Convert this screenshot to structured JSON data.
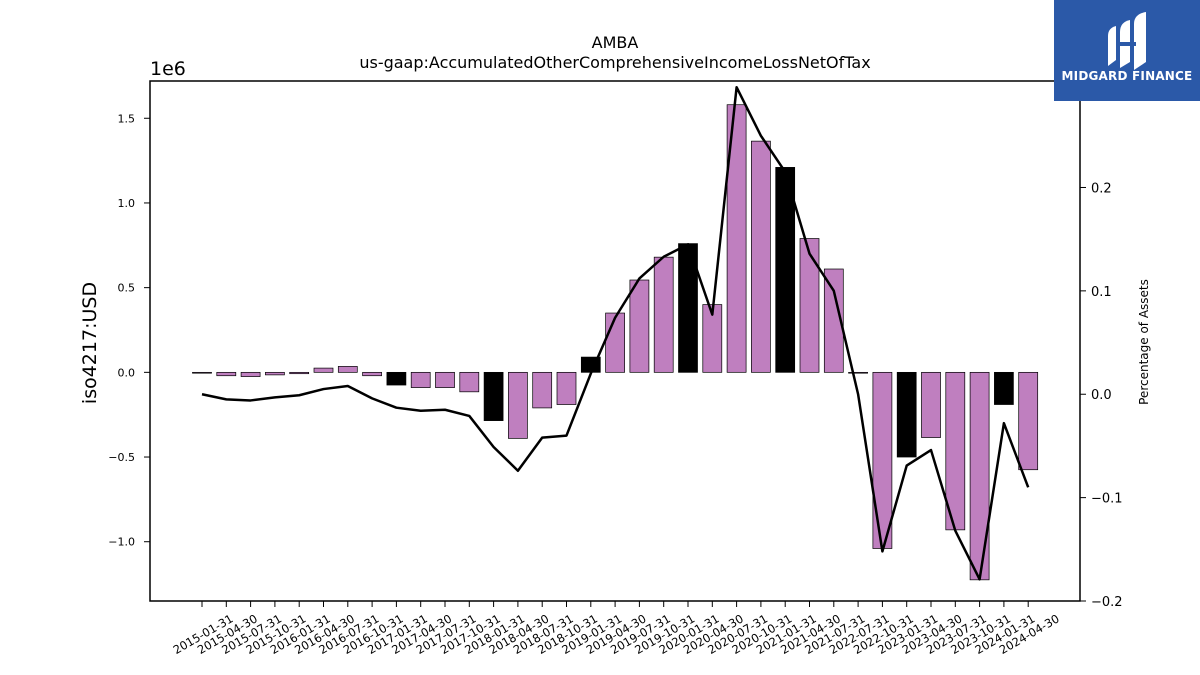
{
  "chart_data": {
    "type": "bar",
    "title": "AMBA",
    "subtitle": "us-gaap:AccumulatedOtherComprehensiveIncomeLossNetOfTax",
    "ylabel": "iso4217:USD",
    "y2label": "Percentage of Assets",
    "offset_text": "1e6",
    "ylim": [
      -1.35,
      1.72
    ],
    "y2lim": [
      -0.2,
      0.303
    ],
    "yticks": [
      {
        "value": 1.5,
        "label": "1.5"
      },
      {
        "value": 1.0,
        "label": "1.0"
      },
      {
        "value": 0.5,
        "label": "0.5"
      },
      {
        "value": 0.0,
        "label": "0.0"
      },
      {
        "value": -0.5,
        "label": "−0.5"
      },
      {
        "value": -1.0,
        "label": "−1.0"
      }
    ],
    "y2ticks": [
      {
        "value": 0.3,
        "label": "0.3"
      },
      {
        "value": 0.2,
        "label": "0.2"
      },
      {
        "value": 0.1,
        "label": "0.1"
      },
      {
        "value": 0.0,
        "label": "0.0"
      },
      {
        "value": -0.1,
        "label": "−0.1"
      },
      {
        "value": -0.2,
        "label": "−0.2"
      }
    ],
    "categories": [
      "2015-01-31",
      "2015-04-30",
      "2015-07-31",
      "2015-10-31",
      "2016-01-31",
      "2016-04-30",
      "2016-07-31",
      "2016-10-31",
      "2017-01-31",
      "2017-04-30",
      "2017-07-31",
      "2017-10-31",
      "2018-01-31",
      "2018-04-30",
      "2018-07-31",
      "2018-10-31",
      "2019-01-31",
      "2019-04-30",
      "2019-07-31",
      "2019-10-31",
      "2020-01-31",
      "2020-04-30",
      "2020-07-31",
      "2020-10-31",
      "2021-01-31",
      "2021-04-30",
      "2021-07-31",
      "2022-07-31",
      "2022-10-31",
      "2023-01-31",
      "2023-04-30",
      "2023-07-31",
      "2023-10-31",
      "2024-01-31",
      "2024-04-30"
    ],
    "series": [
      {
        "type": "bar",
        "values": [
          -0.005,
          -0.02,
          -0.025,
          -0.015,
          -0.008,
          0.025,
          0.035,
          -0.02,
          -0.075,
          -0.09,
          -0.09,
          -0.115,
          -0.285,
          -0.39,
          -0.21,
          -0.19,
          0.09,
          0.35,
          0.545,
          0.68,
          0.76,
          0.4,
          1.58,
          1.365,
          1.21,
          0.79,
          0.61,
          -0.005,
          -1.04,
          -0.5,
          -0.385,
          -0.93,
          -1.225,
          -0.19,
          -0.575
        ],
        "fills": [
          "#bf7fbf",
          "#bf7fbf",
          "#bf7fbf",
          "#bf7fbf",
          "#bf7fbf",
          "#bf7fbf",
          "#bf7fbf",
          "#bf7fbf",
          "#000000",
          "#bf7fbf",
          "#bf7fbf",
          "#bf7fbf",
          "#000000",
          "#bf7fbf",
          "#bf7fbf",
          "#bf7fbf",
          "#000000",
          "#bf7fbf",
          "#bf7fbf",
          "#bf7fbf",
          "#000000",
          "#bf7fbf",
          "#bf7fbf",
          "#bf7fbf",
          "#000000",
          "#bf7fbf",
          "#bf7fbf",
          "#bf7fbf",
          "#bf7fbf",
          "#000000",
          "#bf7fbf",
          "#bf7fbf",
          "#bf7fbf",
          "#000000",
          "#bf7fbf"
        ]
      },
      {
        "type": "line",
        "axis": "right",
        "color": "#000000",
        "values": [
          0.0,
          -0.005,
          -0.006,
          -0.003,
          -0.001,
          0.005,
          0.008,
          -0.004,
          -0.013,
          -0.016,
          -0.015,
          -0.021,
          -0.051,
          -0.074,
          -0.042,
          -0.04,
          0.02,
          0.074,
          0.112,
          0.133,
          0.145,
          0.077,
          0.297,
          0.25,
          0.215,
          0.136,
          0.1,
          0.0,
          -0.152,
          -0.069,
          -0.054,
          -0.132,
          -0.179,
          -0.028,
          -0.09
        ]
      }
    ]
  },
  "branding": {
    "logo_text": "MIDGARD FINANCE"
  }
}
